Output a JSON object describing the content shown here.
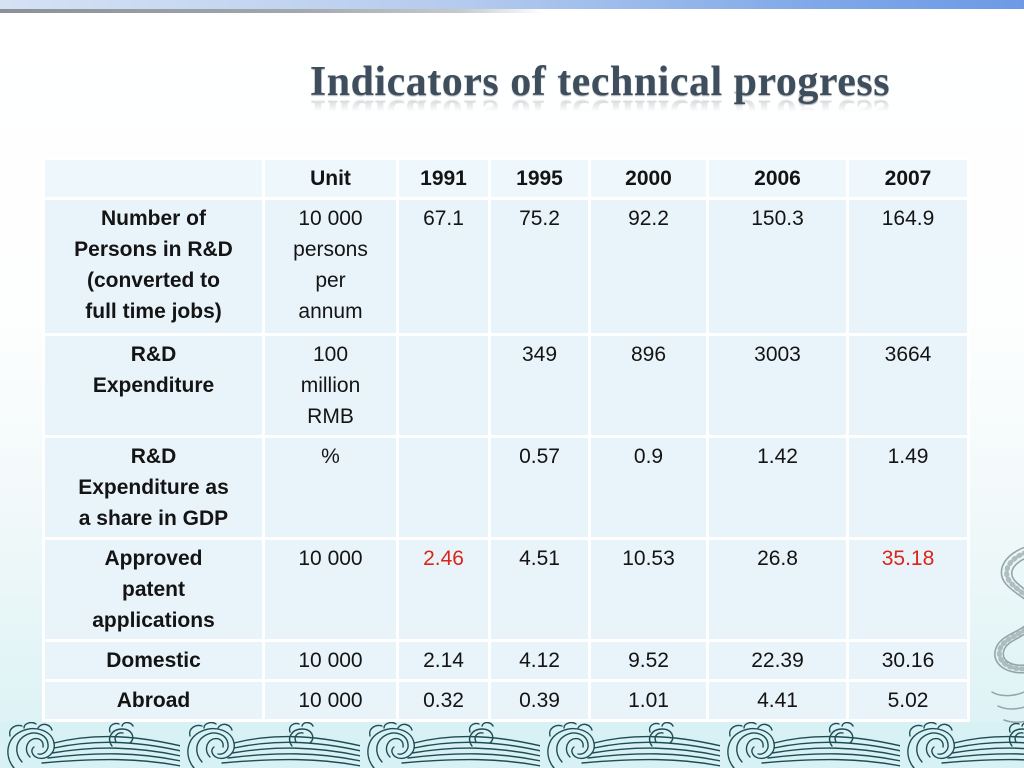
{
  "slide": {
    "title": "Indicators of technical progress",
    "title_color": "#3f4e5d",
    "top_bar_color": "#7fa8e8"
  },
  "table": {
    "header": [
      "",
      "Unit",
      "1991",
      "1995",
      "2000",
      "2006",
      "2007"
    ],
    "rows": [
      {
        "label": "Number of\nPersons in R&D\n(converted to\nfull time jobs)",
        "unit": "10 000\npersons\nper\nannum",
        "values": [
          "67.1",
          "75.2",
          "92.2",
          "150.3",
          "164.9"
        ],
        "red_indices": []
      },
      {
        "label": "R&D\nExpenditure",
        "unit": "100\nmillion\nRMB",
        "values": [
          "",
          "349",
          "896",
          "3003",
          "3664"
        ],
        "red_indices": []
      },
      {
        "label": "R&D\nExpenditure as\na share in GDP",
        "unit": "%",
        "values": [
          "",
          "0.57",
          "0.9",
          "1.42",
          "1.49"
        ],
        "red_indices": []
      },
      {
        "label": "Approved\npatent\napplications",
        "unit": "10 000",
        "values": [
          "2.46",
          "4.51",
          "10.53",
          "26.8",
          "35.18"
        ],
        "red_indices": [
          0,
          4
        ]
      },
      {
        "label": "Domestic",
        "unit": "10 000",
        "values": [
          "2.14",
          "4.12",
          "9.52",
          "22.39",
          "30.16"
        ],
        "red_indices": []
      },
      {
        "label": "Abroad",
        "unit": "10 000",
        "values": [
          "0.32",
          "0.39",
          "1.01",
          "4.41",
          "5.02"
        ],
        "red_indices": []
      }
    ],
    "colors": {
      "cell_bg": "#e9f4fa",
      "header_bg": "#edf7fc",
      "grid": "#ffffff",
      "text": "#141414",
      "highlight_red": "#d9261a"
    }
  }
}
